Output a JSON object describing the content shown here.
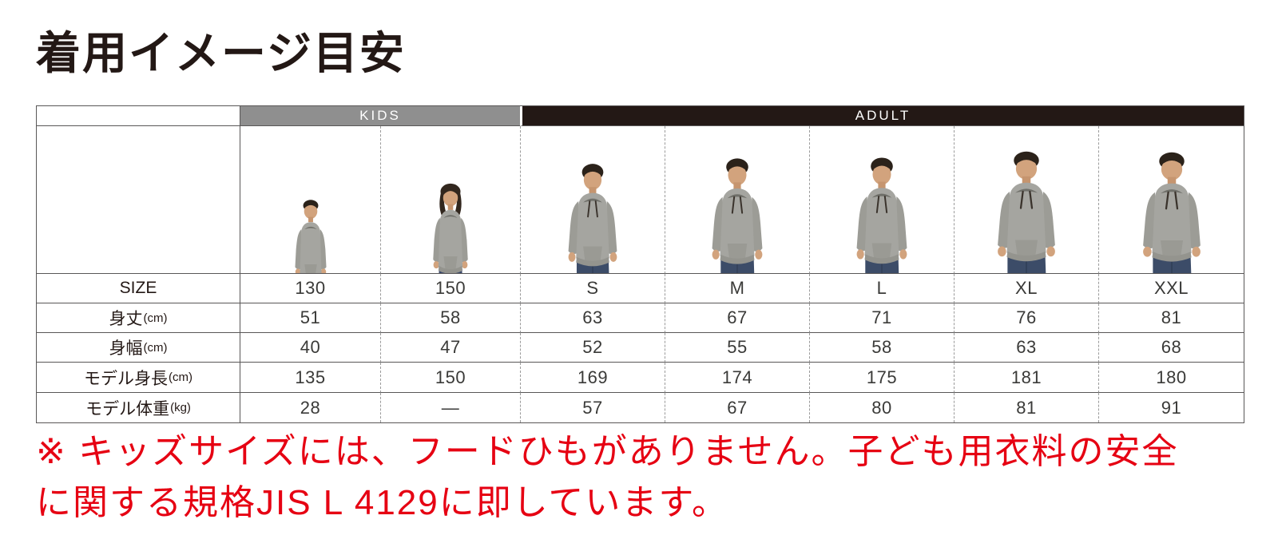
{
  "title": "着用イメージ目安",
  "table": {
    "groups": [
      {
        "label": "KIDS"
      },
      {
        "label": "ADULT"
      }
    ],
    "row_labels": {
      "size": "SIZE",
      "body_length": {
        "name": "身丈",
        "unit": "(cm)"
      },
      "body_width": {
        "name": "身幅",
        "unit": "(cm)"
      },
      "model_height": {
        "name": "モデル身長",
        "unit": "(cm)"
      },
      "model_weight": {
        "name": "モデル体重",
        "unit": "(kg)"
      }
    },
    "columns": [
      {
        "group": "KIDS",
        "size": "130",
        "body_length": "51",
        "body_width": "40",
        "model_height": "135",
        "model_weight": "28",
        "figure": "boy",
        "fit": "regular"
      },
      {
        "group": "KIDS",
        "size": "150",
        "body_length": "58",
        "body_width": "47",
        "model_height": "150",
        "model_weight": "—",
        "figure": "girl",
        "fit": "regular"
      },
      {
        "group": "ADULT",
        "size": "S",
        "body_length": "63",
        "body_width": "52",
        "model_height": "169",
        "model_weight": "57",
        "figure": "man",
        "fit": "regular"
      },
      {
        "group": "ADULT",
        "size": "M",
        "body_length": "67",
        "body_width": "55",
        "model_height": "174",
        "model_weight": "67",
        "figure": "man",
        "fit": "regular"
      },
      {
        "group": "ADULT",
        "size": "L",
        "body_length": "71",
        "body_width": "58",
        "model_height": "175",
        "model_weight": "80",
        "figure": "man",
        "fit": "regular"
      },
      {
        "group": "ADULT",
        "size": "XL",
        "body_length": "76",
        "body_width": "63",
        "model_height": "181",
        "model_weight": "81",
        "figure": "man",
        "fit": "loose"
      },
      {
        "group": "ADULT",
        "size": "XXL",
        "body_length": "81",
        "body_width": "68",
        "model_height": "180",
        "model_weight": "91",
        "figure": "man",
        "fit": "loose"
      }
    ]
  },
  "footnote": {
    "lines": [
      "※ キッズサイズには、フードひもがありません。子ども用衣料の安全",
      "に関する規格JIS L 4129に即しています。"
    ]
  },
  "colors": {
    "accent_red": "#e60012",
    "kids_header_bg": "#8f8f8f",
    "adult_header_bg": "#231815",
    "border": "#595757",
    "hoodie_gray": "#a5a5a0",
    "jeans_blue": "#3c4c68"
  }
}
